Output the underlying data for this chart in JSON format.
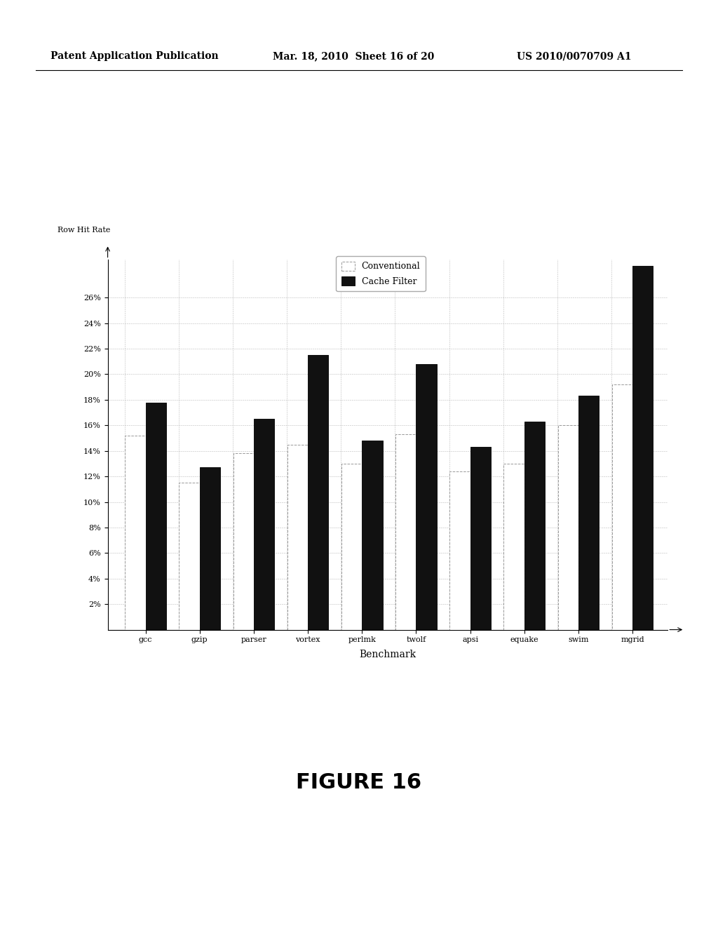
{
  "categories": [
    "gcc",
    "gzip",
    "parser",
    "vortex",
    "perlmk",
    "twolf",
    "apsi",
    "equake",
    "swim",
    "mgrid"
  ],
  "conventional": [
    15.2,
    11.5,
    13.8,
    14.5,
    13.0,
    15.3,
    12.4,
    13.0,
    16.0,
    19.2
  ],
  "cache_filter": [
    17.8,
    12.7,
    16.5,
    21.5,
    14.8,
    20.8,
    14.3,
    16.3,
    18.3,
    28.5
  ],
  "ylabel": "Row Hit Rate",
  "xlabel": "Benchmark",
  "figure_title": "FIGURE 16",
  "yticks": [
    2,
    4,
    6,
    8,
    10,
    12,
    14,
    16,
    18,
    20,
    22,
    24,
    26
  ],
  "ylim": [
    0,
    29
  ],
  "bar_width": 0.38,
  "conventional_color": "white",
  "conventional_edgecolor": "#999999",
  "cache_filter_color": "#111111",
  "cache_filter_edgecolor": "#111111",
  "background_color": "white",
  "header_left": "Patent Application Publication",
  "header_mid": "Mar. 18, 2010  Sheet 16 of 20",
  "header_right": "US 2010/0070709 A1",
  "legend_conventional": "Conventional",
  "legend_cache_filter": "Cache Filter"
}
